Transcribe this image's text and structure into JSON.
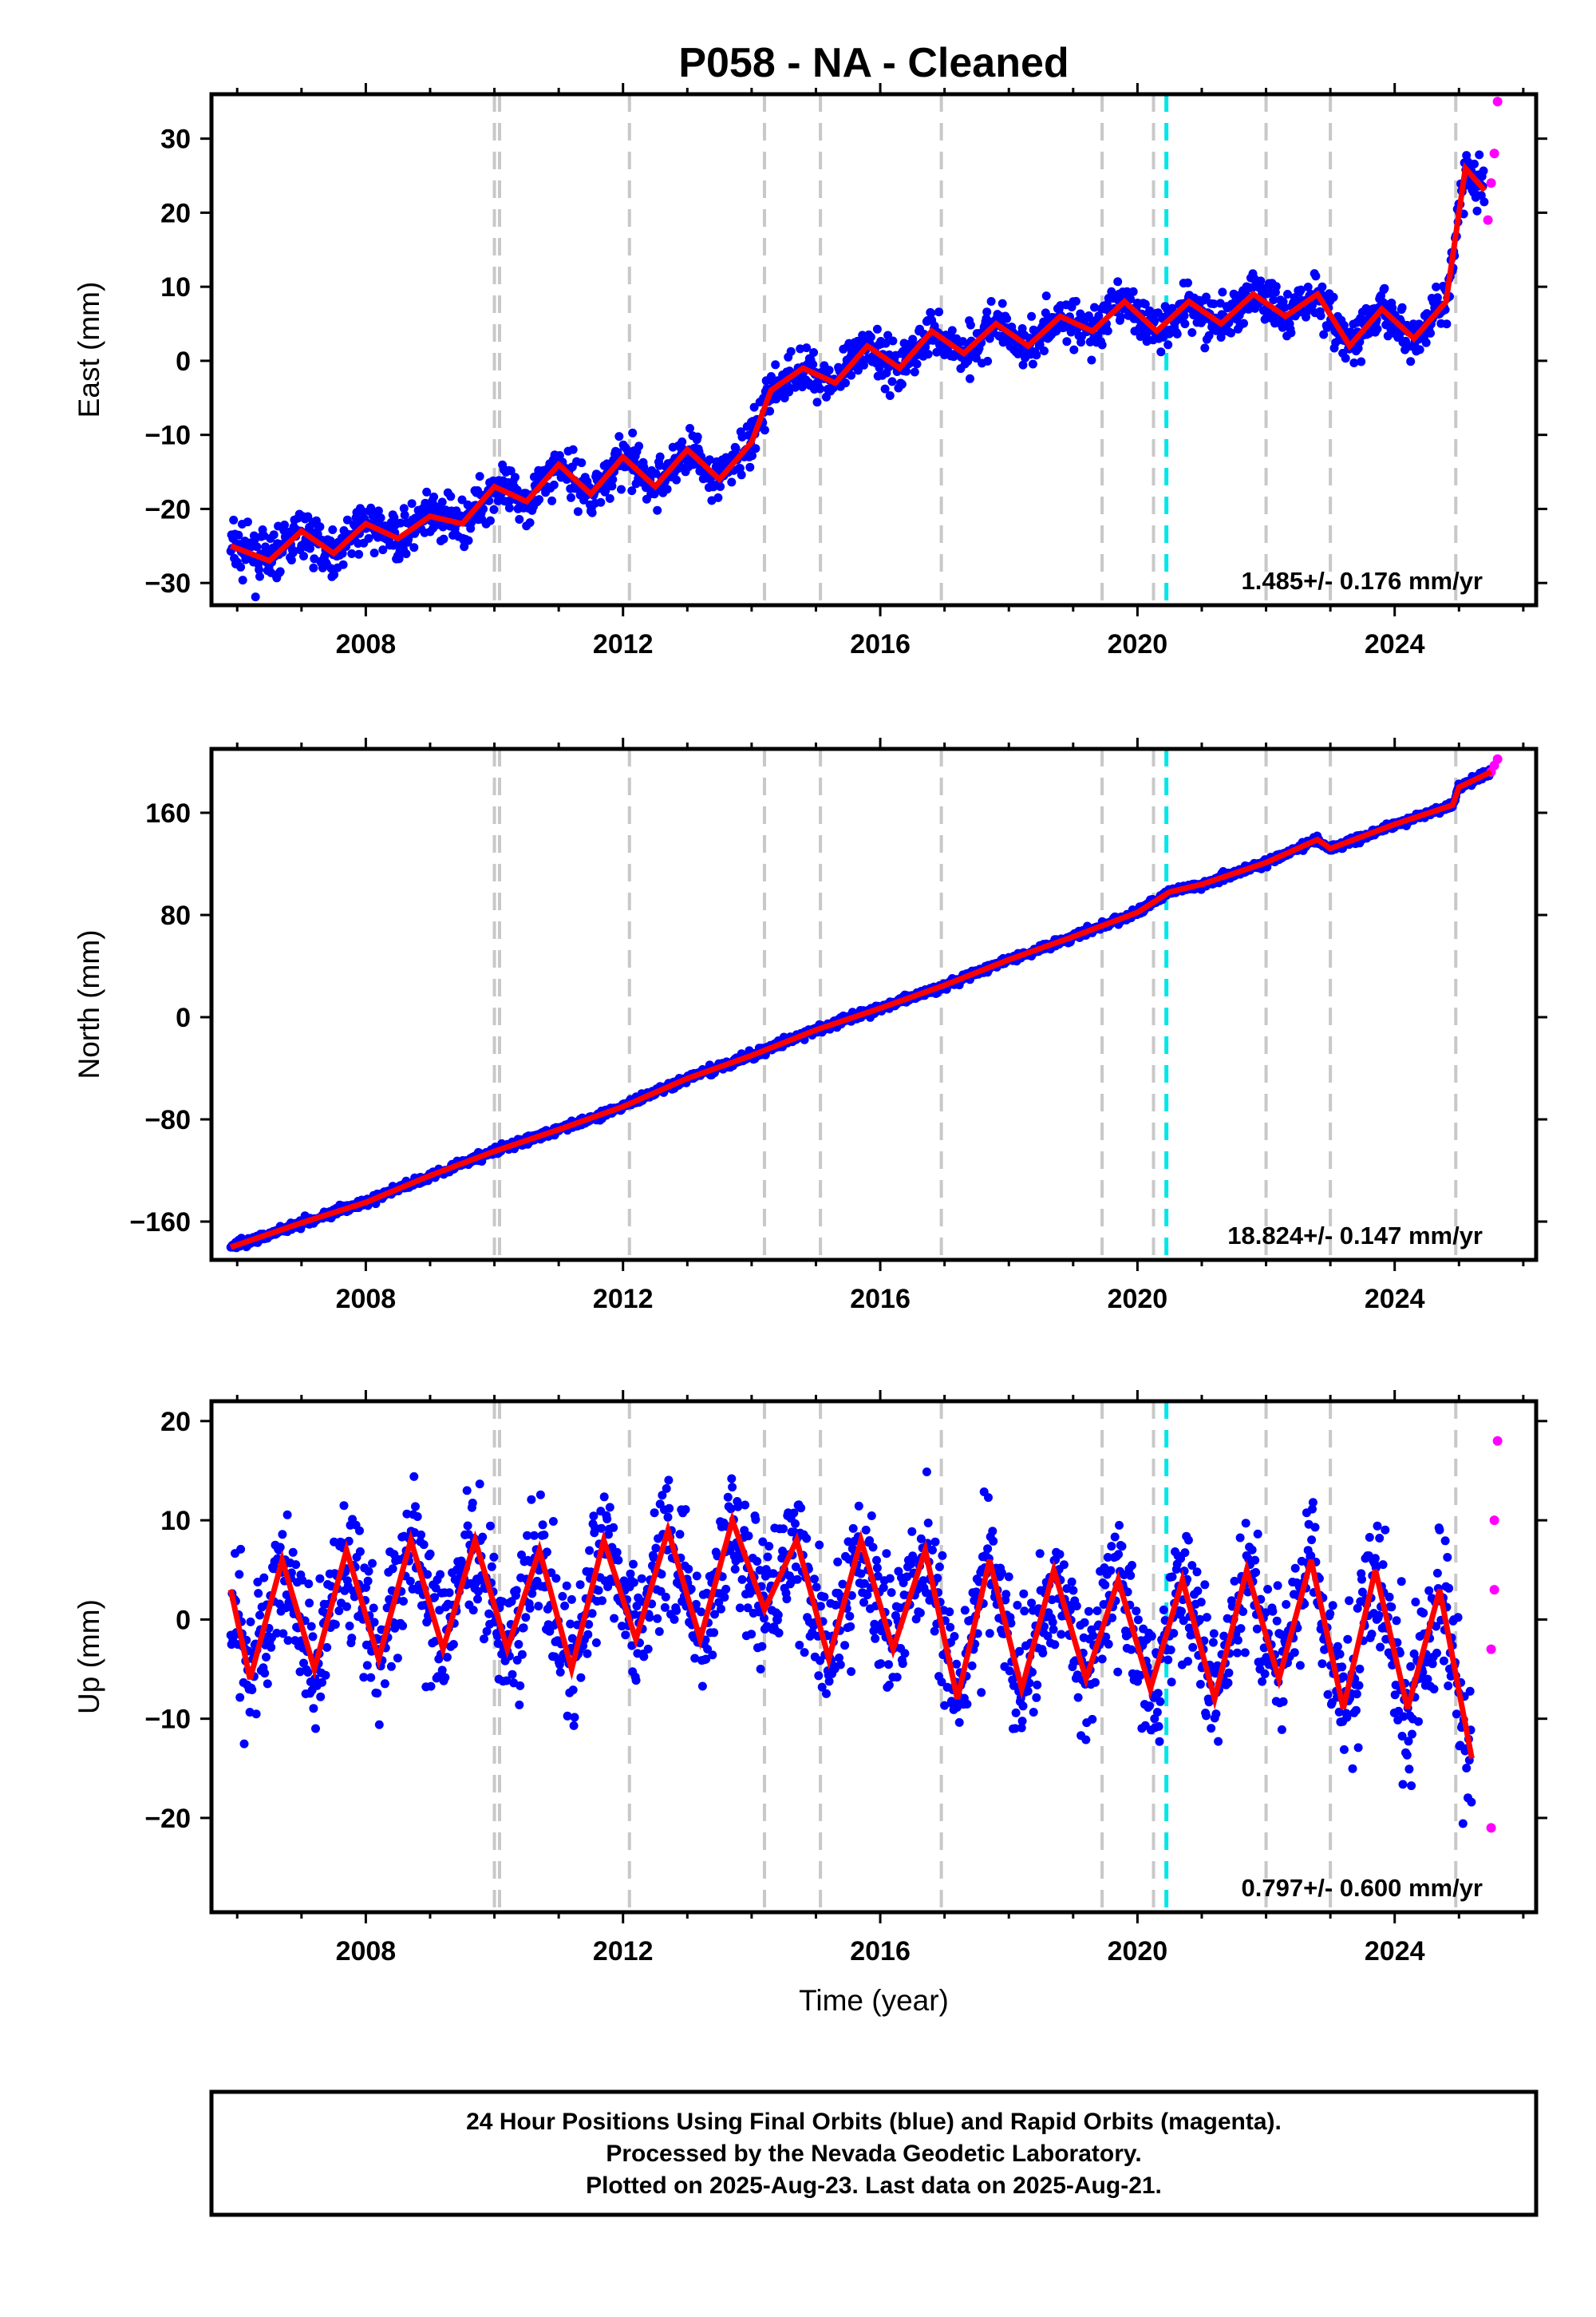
{
  "title": "P058  - NA - Cleaned",
  "xlabel": "Time (year)",
  "x_ticks": [
    "2008",
    "2012",
    "2016",
    "2020",
    "2024"
  ],
  "x_range": [
    2005.6,
    2026.2
  ],
  "colors": {
    "final_orbits": "#0000ff",
    "rapid_orbits": "#ff00ff",
    "model": "#ff0000",
    "event_lines": "#c8c8c8",
    "highlight_line": "#00e6e6",
    "frame": "#000000"
  },
  "event_lines": [
    2010.0,
    2010.08,
    2012.1,
    2014.2,
    2015.07,
    2016.95,
    2019.45,
    2020.25,
    2022.0,
    2023.0,
    2024.95
  ],
  "highlight_line": 2020.45,
  "chart_data": [
    {
      "type": "scatter",
      "component": "East",
      "ylabel": "East (mm)",
      "ylim": [
        -33,
        36
      ],
      "y_ticks": [
        "30",
        "20",
        "10",
        "0",
        "−10",
        "−20",
        "−30"
      ],
      "y_tick_values": [
        30,
        20,
        10,
        0,
        -10,
        -20,
        -30
      ],
      "rate_label": "1.485+/- 0.176 mm/yr",
      "grid": false,
      "series": [
        {
          "name": "Final Orbits",
          "color": "#0000ff",
          "x": [
            2005.9,
            2006.5,
            2007.0,
            2007.5,
            2008.0,
            2008.5,
            2009.0,
            2009.5,
            2010.0,
            2010.5,
            2011.0,
            2011.5,
            2012.0,
            2012.5,
            2013.0,
            2013.5,
            2014.0,
            2014.3,
            2014.8,
            2015.3,
            2015.8,
            2016.3,
            2016.8,
            2017.3,
            2017.8,
            2018.3,
            2018.8,
            2019.3,
            2019.8,
            2020.3,
            2020.8,
            2021.3,
            2021.8,
            2022.3,
            2022.8,
            2023.3,
            2023.8,
            2024.3,
            2024.8,
            2025.1,
            2025.4
          ],
          "y": [
            -25,
            -27,
            -23,
            -26,
            -22,
            -24,
            -21,
            -22,
            -17,
            -19,
            -14,
            -18,
            -13,
            -17,
            -12,
            -16,
            -11,
            -4,
            -1,
            -3,
            2,
            -1,
            4,
            1,
            5,
            2,
            6,
            4,
            8,
            4,
            8,
            5,
            9,
            6,
            9,
            2,
            7,
            3,
            8,
            26,
            23
          ]
        },
        {
          "name": "Rapid Orbits",
          "color": "#ff00ff",
          "x": [
            2025.45,
            2025.5,
            2025.55,
            2025.6
          ],
          "y": [
            19,
            24,
            28,
            35
          ]
        }
      ]
    },
    {
      "type": "scatter",
      "component": "North",
      "ylabel": "North (mm)",
      "ylim": [
        -190,
        210
      ],
      "y_ticks": [
        "160",
        "80",
        "0",
        "−80",
        "−160"
      ],
      "y_tick_values": [
        160,
        80,
        0,
        -80,
        -160
      ],
      "rate_label": "18.824+/- 0.147 mm/yr",
      "grid": false,
      "series": [
        {
          "name": "Final Orbits",
          "color": "#0000ff",
          "x": [
            2005.9,
            2007.0,
            2008.0,
            2009.0,
            2010.0,
            2011.0,
            2012.0,
            2013.0,
            2014.0,
            2015.0,
            2016.0,
            2017.0,
            2018.0,
            2019.0,
            2020.0,
            2020.5,
            2021.0,
            2022.0,
            2022.8,
            2023.0,
            2024.0,
            2024.9,
            2025.0,
            2025.5
          ],
          "y": [
            -180,
            -161,
            -145,
            -124,
            -105,
            -88,
            -70,
            -48,
            -30,
            -10,
            7,
            25,
            45,
            63,
            82,
            98,
            104,
            121,
            139,
            132,
            151,
            166,
            180,
            192
          ]
        },
        {
          "name": "Rapid Orbits",
          "color": "#ff00ff",
          "x": [
            2025.5,
            2025.55,
            2025.6
          ],
          "y": [
            192,
            197,
            202
          ]
        }
      ]
    },
    {
      "type": "scatter",
      "component": "Up",
      "ylabel": "Up (mm)",
      "ylim": [
        -29.5,
        22
      ],
      "y_ticks": [
        "20",
        "10",
        "0",
        "−10",
        "−20"
      ],
      "y_tick_values": [
        20,
        10,
        0,
        -10,
        -20
      ],
      "rate_label": "0.797+/- 0.600 mm/yr",
      "grid": false,
      "series": [
        {
          "name": "Final Orbits",
          "color": "#0000ff",
          "x": [
            2005.9,
            2006.2,
            2006.7,
            2007.2,
            2007.7,
            2008.2,
            2008.7,
            2009.2,
            2009.7,
            2010.2,
            2010.7,
            2011.2,
            2011.7,
            2012.2,
            2012.7,
            2013.2,
            2013.7,
            2014.2,
            2014.7,
            2015.2,
            2015.7,
            2016.2,
            2016.7,
            2017.2,
            2017.7,
            2018.2,
            2018.7,
            2019.2,
            2019.7,
            2020.2,
            2020.7,
            2021.2,
            2021.7,
            2022.2,
            2022.7,
            2023.2,
            2023.7,
            2024.2,
            2024.7,
            2025.2
          ],
          "y": [
            3,
            -6,
            6,
            -5,
            7,
            -4,
            8,
            -3,
            8,
            -3,
            7,
            -5,
            8,
            -2,
            9,
            -2,
            10,
            1,
            8,
            -4,
            8,
            -3,
            7,
            -8,
            6,
            -7,
            5,
            -6,
            4,
            -7,
            4,
            -8,
            5,
            -6,
            6,
            -9,
            5,
            -9,
            3,
            -14
          ]
        },
        {
          "name": "Rapid Orbits",
          "color": "#ff00ff",
          "x": [
            2025.5,
            2025.5,
            2025.55,
            2025.55,
            2025.6
          ],
          "y": [
            -21,
            -3,
            3,
            10,
            18
          ]
        }
      ]
    }
  ],
  "footer": {
    "line1": "24 Hour Positions Using Final Orbits (blue) and Rapid Orbits (magenta).",
    "line2": "Processed by the Nevada Geodetic Laboratory.",
    "line3": "Plotted on 2025-Aug-23. Last data on 2025-Aug-21."
  }
}
